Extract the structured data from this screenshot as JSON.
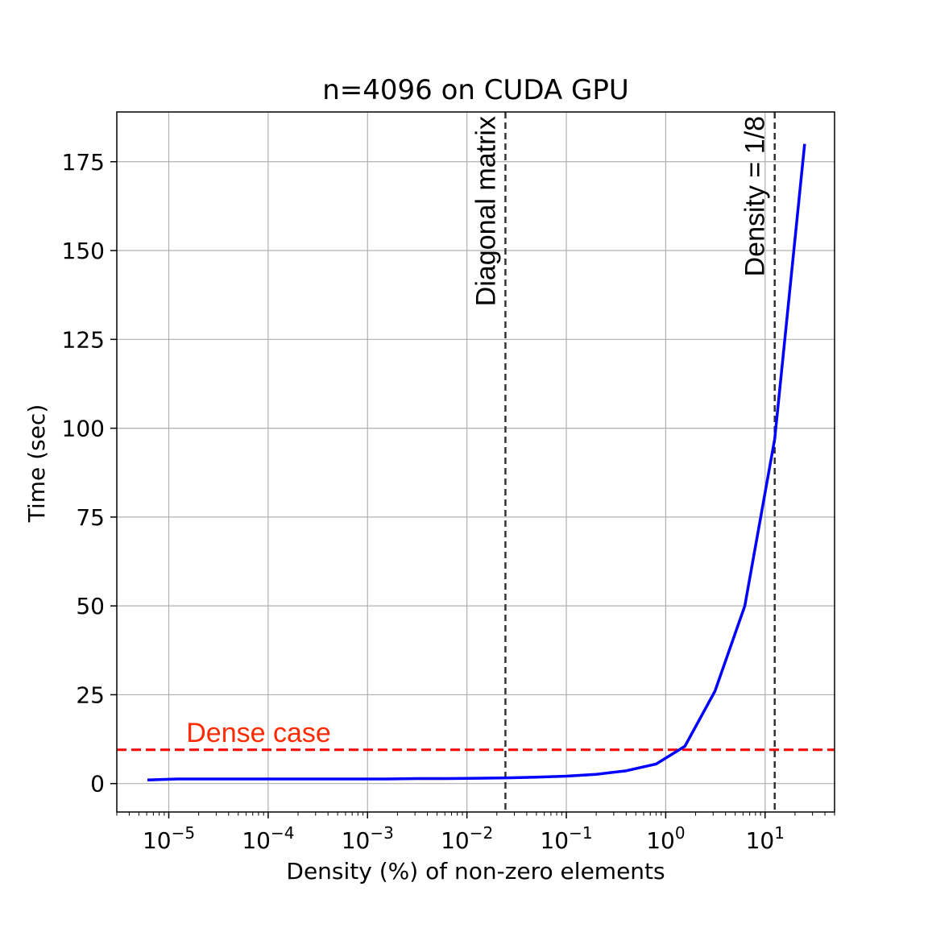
{
  "chart_data": {
    "type": "line",
    "title": "n=4096 on CUDA GPU",
    "xlabel": "Density (%) of non-zero elements",
    "ylabel": "Time (sec)",
    "xscale": "log",
    "xlim": [
      3e-06,
      50
    ],
    "ylim": [
      -8,
      189
    ],
    "x_ticks": [
      {
        "value": 1e-05,
        "base": "10",
        "exp": "−5"
      },
      {
        "value": 0.0001,
        "base": "10",
        "exp": "−4"
      },
      {
        "value": 0.001,
        "base": "10",
        "exp": "−3"
      },
      {
        "value": 0.01,
        "base": "10",
        "exp": "−2"
      },
      {
        "value": 0.1,
        "base": "10",
        "exp": "−1"
      },
      {
        "value": 1,
        "base": "10",
        "exp": "0"
      },
      {
        "value": 10,
        "base": "10",
        "exp": "1"
      }
    ],
    "y_ticks": [
      0,
      25,
      50,
      75,
      100,
      125,
      150,
      175
    ],
    "grid": true,
    "series": [
      {
        "color": "#0000ff",
        "x": [
          6.1e-06,
          1.22e-05,
          2.44e-05,
          4.88e-05,
          9.77e-05,
          0.000195,
          0.000391,
          0.000781,
          0.00156,
          0.00313,
          0.00625,
          0.0125,
          0.025,
          0.05,
          0.1,
          0.2,
          0.4,
          0.8,
          1.56,
          3.13,
          6.25,
          12.5,
          25
        ],
        "y": [
          1.0,
          1.3,
          1.3,
          1.3,
          1.3,
          1.3,
          1.3,
          1.3,
          1.3,
          1.4,
          1.4,
          1.5,
          1.6,
          1.8,
          2.1,
          2.6,
          3.6,
          5.5,
          10.5,
          26,
          50,
          97,
          180
        ]
      }
    ],
    "hlines": [
      {
        "y": 9.5,
        "color": "#ff0000",
        "style": "dashed",
        "label": "Dense case",
        "label_color": "#ff2a00"
      }
    ],
    "vlines": [
      {
        "x": 0.0244,
        "color": "#333333",
        "style": "dashed",
        "label": "Diagonal matrix"
      },
      {
        "x": 12.5,
        "color": "#333333",
        "style": "dashed",
        "label": "Density = 1/8"
      }
    ]
  }
}
